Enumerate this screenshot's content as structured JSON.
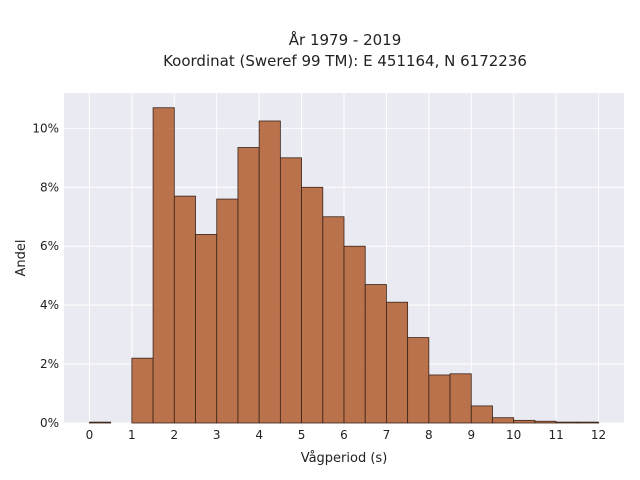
{
  "chart_data": {
    "type": "bar",
    "title_line1": "År 1979 - 2019",
    "title_line2": "Koordinat (Sweref 99 TM): E 451164, N 6172236",
    "xlabel": "Vågperiod (s)",
    "ylabel": "Andel",
    "xlim": [
      -0.6,
      12.6
    ],
    "ylim": [
      0,
      11.2
    ],
    "x_ticks": [
      0,
      1,
      2,
      3,
      4,
      5,
      6,
      7,
      8,
      9,
      10,
      11,
      12
    ],
    "x_tick_labels": [
      "0",
      "1",
      "2",
      "3",
      "4",
      "5",
      "6",
      "7",
      "8",
      "9",
      "10",
      "11",
      "12"
    ],
    "y_ticks": [
      0,
      2,
      4,
      6,
      8,
      10
    ],
    "y_tick_labels": [
      "0%",
      "2%",
      "4%",
      "6%",
      "8%",
      "10%"
    ],
    "bin_width": 0.5,
    "bins": [
      {
        "x0": 0.0,
        "value": 0.03
      },
      {
        "x0": 0.5,
        "value": 0.0
      },
      {
        "x0": 1.0,
        "value": 2.2
      },
      {
        "x0": 1.5,
        "value": 10.7
      },
      {
        "x0": 2.0,
        "value": 7.7
      },
      {
        "x0": 2.5,
        "value": 6.4
      },
      {
        "x0": 3.0,
        "value": 7.6
      },
      {
        "x0": 3.5,
        "value": 9.35
      },
      {
        "x0": 4.0,
        "value": 10.25
      },
      {
        "x0": 4.5,
        "value": 9.0
      },
      {
        "x0": 5.0,
        "value": 8.0
      },
      {
        "x0": 5.5,
        "value": 7.0
      },
      {
        "x0": 6.0,
        "value": 6.0
      },
      {
        "x0": 6.5,
        "value": 4.7
      },
      {
        "x0": 7.0,
        "value": 4.1
      },
      {
        "x0": 7.5,
        "value": 2.9
      },
      {
        "x0": 8.0,
        "value": 1.63
      },
      {
        "x0": 8.5,
        "value": 1.67
      },
      {
        "x0": 9.0,
        "value": 0.58
      },
      {
        "x0": 9.5,
        "value": 0.18
      },
      {
        "x0": 10.0,
        "value": 0.09
      },
      {
        "x0": 10.5,
        "value": 0.06
      },
      {
        "x0": 11.0,
        "value": 0.03
      },
      {
        "x0": 11.5,
        "value": 0.03
      }
    ],
    "grid": true,
    "colors": {
      "bar_fill": "#b5653a",
      "bar_stroke": "#3a2418",
      "plot_background": "#eaeaf2",
      "grid": "#ffffff"
    }
  }
}
